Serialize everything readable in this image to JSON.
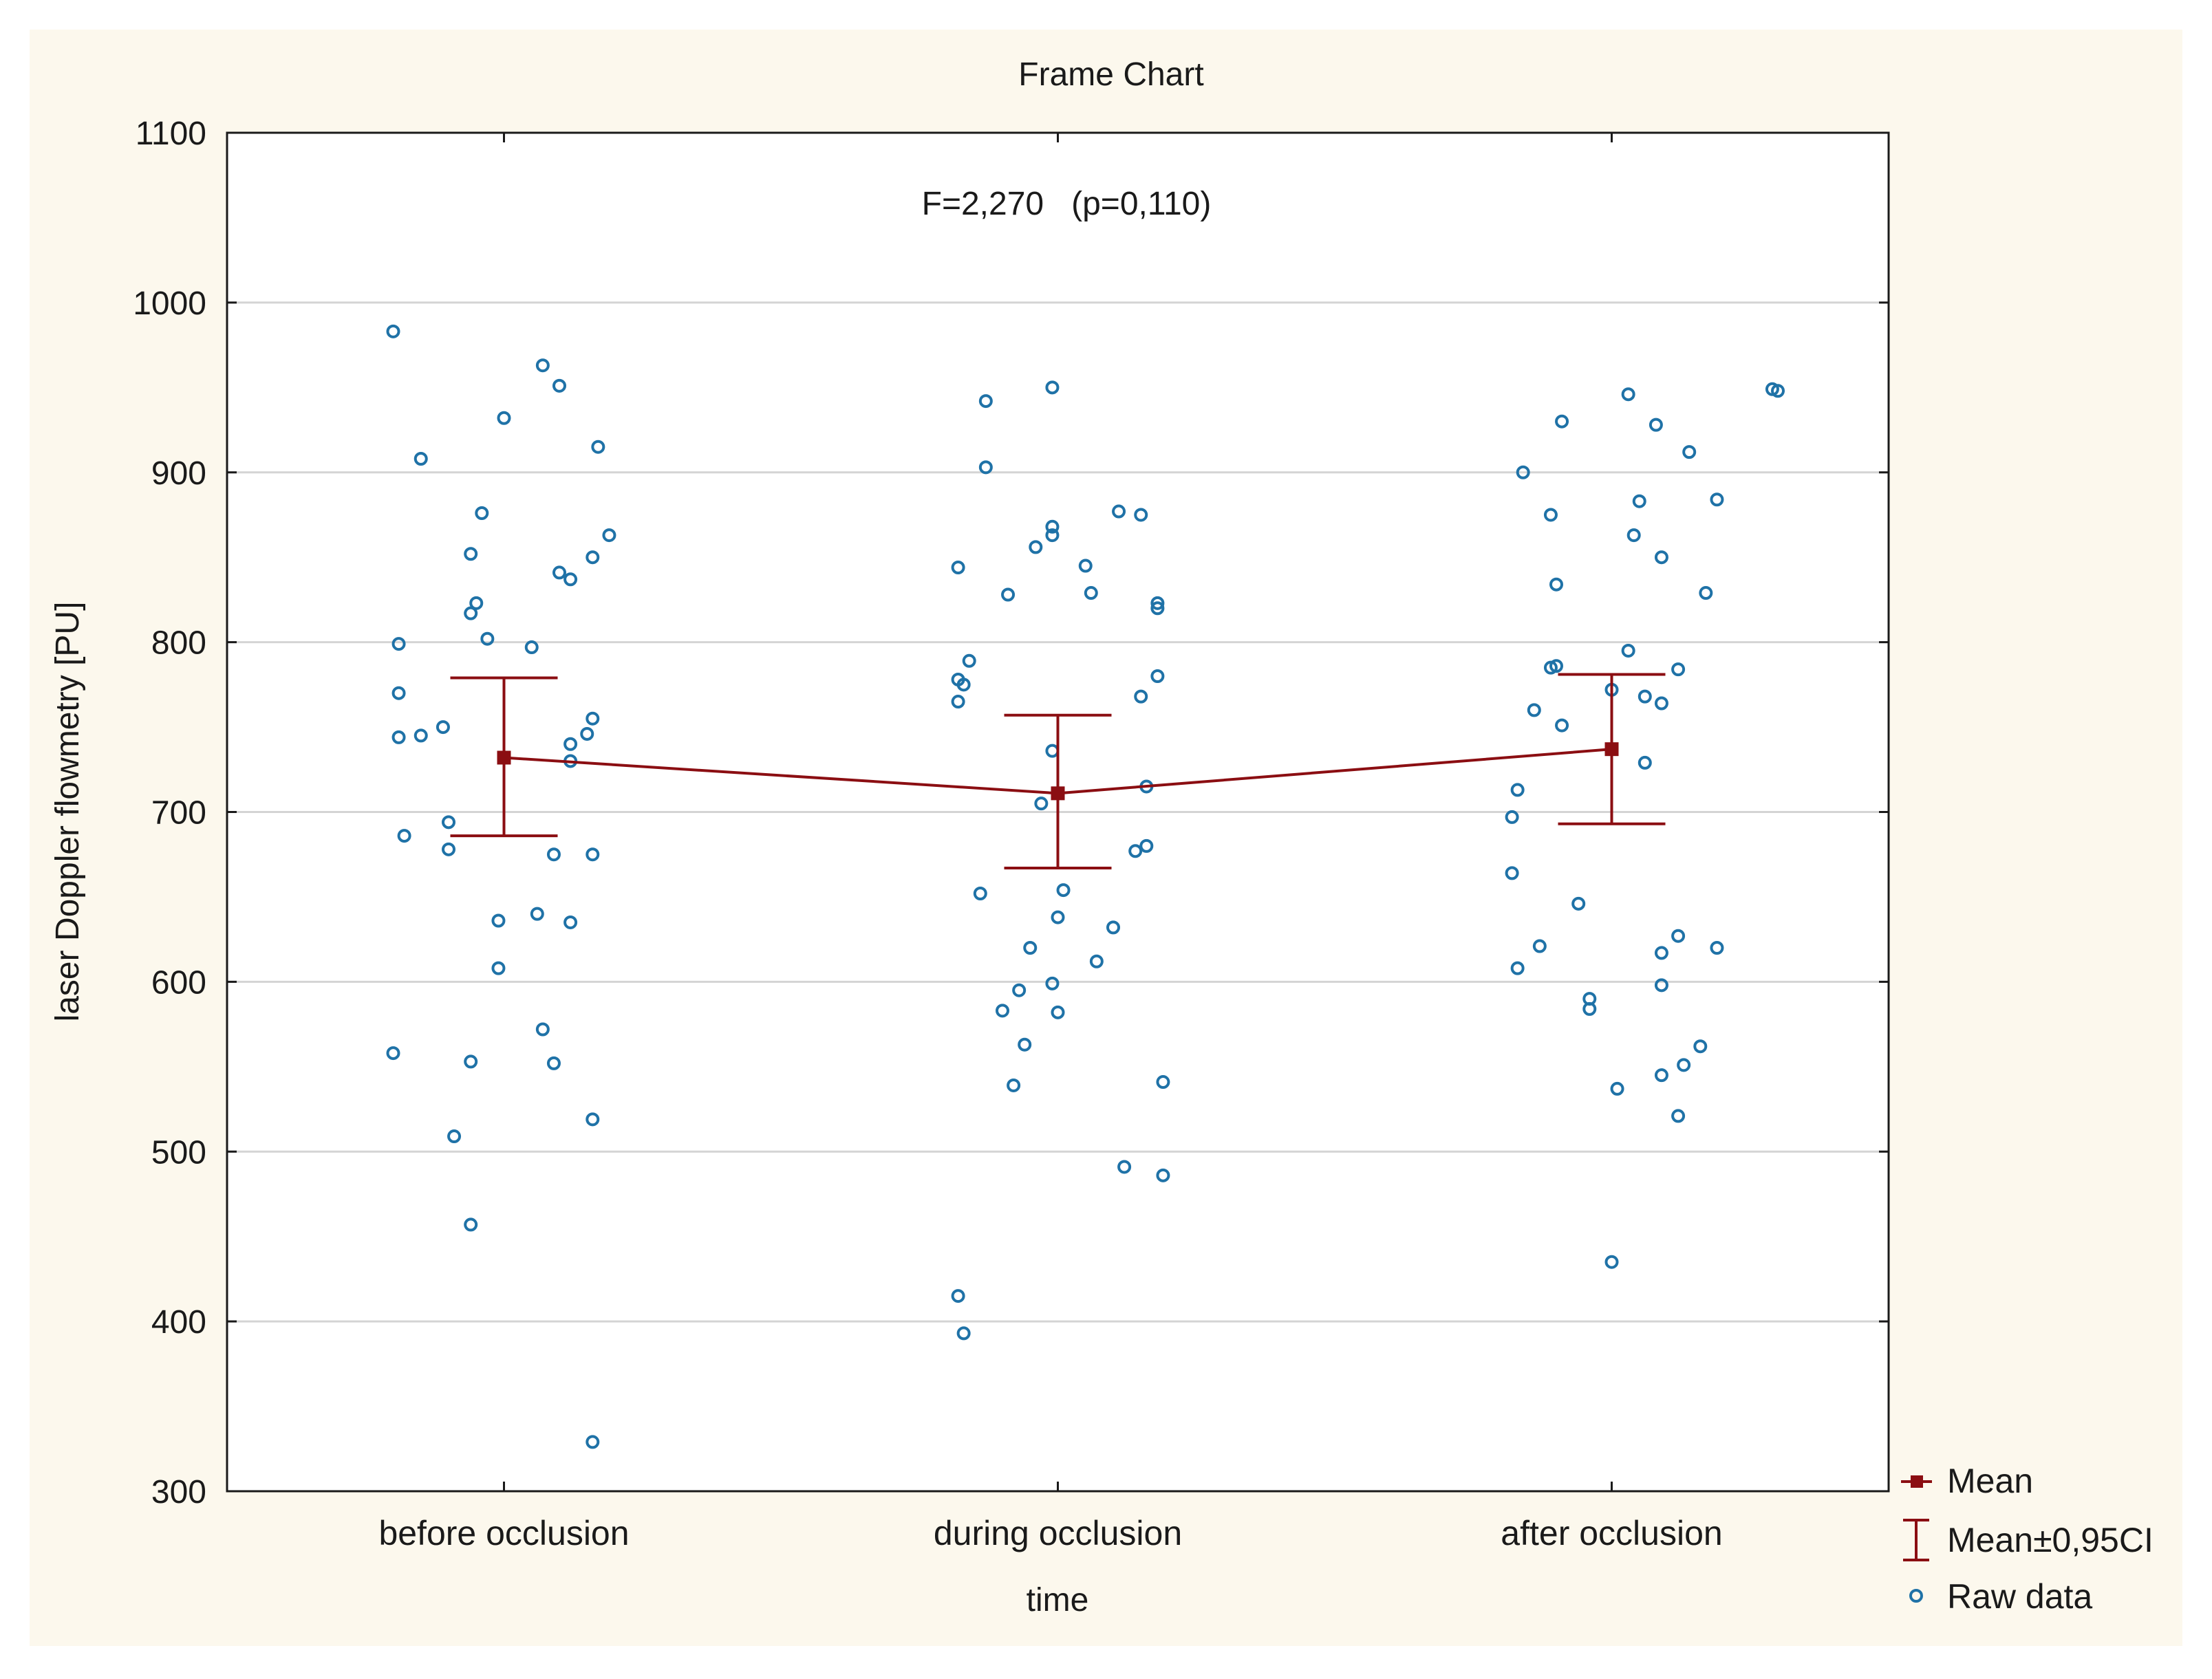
{
  "chart_data": {
    "type": "scatter",
    "title": "Frame Chart",
    "annotation": "F=2,270   (p=0,110)",
    "xlabel": "time",
    "ylabel": "laser Doppler flowmetry [PU]",
    "categories": [
      "before occlusion",
      "during occlusion",
      "after occlusion"
    ],
    "ylim": [
      300,
      1100
    ],
    "yticks": [
      300,
      400,
      500,
      600,
      700,
      800,
      900,
      1000,
      1100
    ],
    "grid": true,
    "legend_position": "bottom-right outside",
    "legend": [
      "Mean",
      "Mean±0,95CI",
      "Raw data"
    ],
    "colors": {
      "background": "#fcf8ed",
      "mean": "#8b0e12",
      "raw": "#1f72a7",
      "grid": "#d4d4d4",
      "axis": "#1a1a1a"
    },
    "mean_series": {
      "name": "Mean",
      "values": [
        732,
        711,
        737
      ],
      "ci_lower": [
        686,
        667,
        693
      ],
      "ci_upper": [
        779,
        757,
        781
      ]
    },
    "raw_series": [
      {
        "name": "before occlusion",
        "points": [
          {
            "x": -0.2,
            "y": 983
          },
          {
            "x": 0.07,
            "y": 963
          },
          {
            "x": 0.1,
            "y": 951
          },
          {
            "x": 0.0,
            "y": 932
          },
          {
            "x": 0.17,
            "y": 915
          },
          {
            "x": -0.15,
            "y": 908
          },
          {
            "x": -0.04,
            "y": 876
          },
          {
            "x": 0.19,
            "y": 863
          },
          {
            "x": -0.06,
            "y": 852
          },
          {
            "x": 0.16,
            "y": 850
          },
          {
            "x": 0.1,
            "y": 841
          },
          {
            "x": 0.12,
            "y": 837
          },
          {
            "x": -0.05,
            "y": 823
          },
          {
            "x": -0.06,
            "y": 817
          },
          {
            "x": -0.03,
            "y": 802
          },
          {
            "x": 0.05,
            "y": 797
          },
          {
            "x": -0.19,
            "y": 799
          },
          {
            "x": -0.19,
            "y": 770
          },
          {
            "x": 0.16,
            "y": 755
          },
          {
            "x": -0.11,
            "y": 750
          },
          {
            "x": 0.15,
            "y": 746
          },
          {
            "x": -0.19,
            "y": 744
          },
          {
            "x": -0.15,
            "y": 745
          },
          {
            "x": 0.12,
            "y": 740
          },
          {
            "x": 0.12,
            "y": 730
          },
          {
            "x": -0.1,
            "y": 694
          },
          {
            "x": -0.18,
            "y": 686
          },
          {
            "x": -0.1,
            "y": 678
          },
          {
            "x": 0.09,
            "y": 675
          },
          {
            "x": 0.16,
            "y": 675
          },
          {
            "x": 0.06,
            "y": 640
          },
          {
            "x": -0.01,
            "y": 636
          },
          {
            "x": 0.12,
            "y": 635
          },
          {
            "x": -0.01,
            "y": 608
          },
          {
            "x": 0.07,
            "y": 572
          },
          {
            "x": -0.2,
            "y": 558
          },
          {
            "x": -0.06,
            "y": 553
          },
          {
            "x": 0.09,
            "y": 552
          },
          {
            "x": 0.16,
            "y": 519
          },
          {
            "x": -0.09,
            "y": 509
          },
          {
            "x": -0.06,
            "y": 457
          },
          {
            "x": 0.16,
            "y": 329
          }
        ]
      },
      {
        "name": "during occlusion",
        "points": [
          {
            "x": -0.01,
            "y": 950
          },
          {
            "x": -0.13,
            "y": 942
          },
          {
            "x": -0.13,
            "y": 903
          },
          {
            "x": 0.11,
            "y": 877
          },
          {
            "x": 0.15,
            "y": 875
          },
          {
            "x": -0.01,
            "y": 868
          },
          {
            "x": -0.01,
            "y": 863
          },
          {
            "x": -0.04,
            "y": 856
          },
          {
            "x": 0.05,
            "y": 845
          },
          {
            "x": -0.18,
            "y": 844
          },
          {
            "x": 0.06,
            "y": 829
          },
          {
            "x": -0.09,
            "y": 828
          },
          {
            "x": 0.18,
            "y": 823
          },
          {
            "x": 0.18,
            "y": 820
          },
          {
            "x": -0.16,
            "y": 789
          },
          {
            "x": 0.18,
            "y": 780
          },
          {
            "x": -0.18,
            "y": 778
          },
          {
            "x": -0.17,
            "y": 775
          },
          {
            "x": 0.15,
            "y": 768
          },
          {
            "x": -0.18,
            "y": 765
          },
          {
            "x": -0.01,
            "y": 736
          },
          {
            "x": 0.16,
            "y": 715
          },
          {
            "x": -0.03,
            "y": 705
          },
          {
            "x": 0.16,
            "y": 680
          },
          {
            "x": 0.14,
            "y": 677
          },
          {
            "x": 0.01,
            "y": 654
          },
          {
            "x": -0.14,
            "y": 652
          },
          {
            "x": 0.0,
            "y": 638
          },
          {
            "x": 0.1,
            "y": 632
          },
          {
            "x": -0.05,
            "y": 620
          },
          {
            "x": 0.07,
            "y": 612
          },
          {
            "x": -0.01,
            "y": 599
          },
          {
            "x": -0.07,
            "y": 595
          },
          {
            "x": -0.1,
            "y": 583
          },
          {
            "x": 0.0,
            "y": 582
          },
          {
            "x": -0.06,
            "y": 563
          },
          {
            "x": 0.19,
            "y": 541
          },
          {
            "x": -0.08,
            "y": 539
          },
          {
            "x": 0.12,
            "y": 491
          },
          {
            "x": 0.19,
            "y": 486
          },
          {
            "x": -0.18,
            "y": 415
          },
          {
            "x": -0.17,
            "y": 393
          }
        ]
      },
      {
        "name": "after occlusion",
        "points": [
          {
            "x": 0.29,
            "y": 949
          },
          {
            "x": 0.3,
            "y": 948
          },
          {
            "x": 0.03,
            "y": 946
          },
          {
            "x": -0.09,
            "y": 930
          },
          {
            "x": 0.08,
            "y": 928
          },
          {
            "x": 0.14,
            "y": 912
          },
          {
            "x": -0.16,
            "y": 900
          },
          {
            "x": 0.19,
            "y": 884
          },
          {
            "x": 0.05,
            "y": 883
          },
          {
            "x": -0.11,
            "y": 875
          },
          {
            "x": 0.04,
            "y": 863
          },
          {
            "x": 0.09,
            "y": 850
          },
          {
            "x": -0.1,
            "y": 834
          },
          {
            "x": 0.17,
            "y": 829
          },
          {
            "x": 0.03,
            "y": 795
          },
          {
            "x": -0.1,
            "y": 786
          },
          {
            "x": -0.11,
            "y": 785
          },
          {
            "x": 0.12,
            "y": 784
          },
          {
            "x": 0.0,
            "y": 772
          },
          {
            "x": 0.06,
            "y": 768
          },
          {
            "x": 0.09,
            "y": 764
          },
          {
            "x": -0.14,
            "y": 760
          },
          {
            "x": -0.09,
            "y": 751
          },
          {
            "x": 0.06,
            "y": 729
          },
          {
            "x": -0.17,
            "y": 713
          },
          {
            "x": -0.18,
            "y": 697
          },
          {
            "x": -0.18,
            "y": 664
          },
          {
            "x": -0.06,
            "y": 646
          },
          {
            "x": 0.12,
            "y": 627
          },
          {
            "x": -0.13,
            "y": 621
          },
          {
            "x": 0.19,
            "y": 620
          },
          {
            "x": 0.09,
            "y": 617
          },
          {
            "x": -0.17,
            "y": 608
          },
          {
            "x": 0.09,
            "y": 598
          },
          {
            "x": -0.04,
            "y": 590
          },
          {
            "x": -0.04,
            "y": 584
          },
          {
            "x": 0.16,
            "y": 562
          },
          {
            "x": 0.13,
            "y": 551
          },
          {
            "x": 0.09,
            "y": 545
          },
          {
            "x": 0.01,
            "y": 537
          },
          {
            "x": 0.12,
            "y": 521
          },
          {
            "x": 0.0,
            "y": 435
          }
        ]
      }
    ]
  }
}
